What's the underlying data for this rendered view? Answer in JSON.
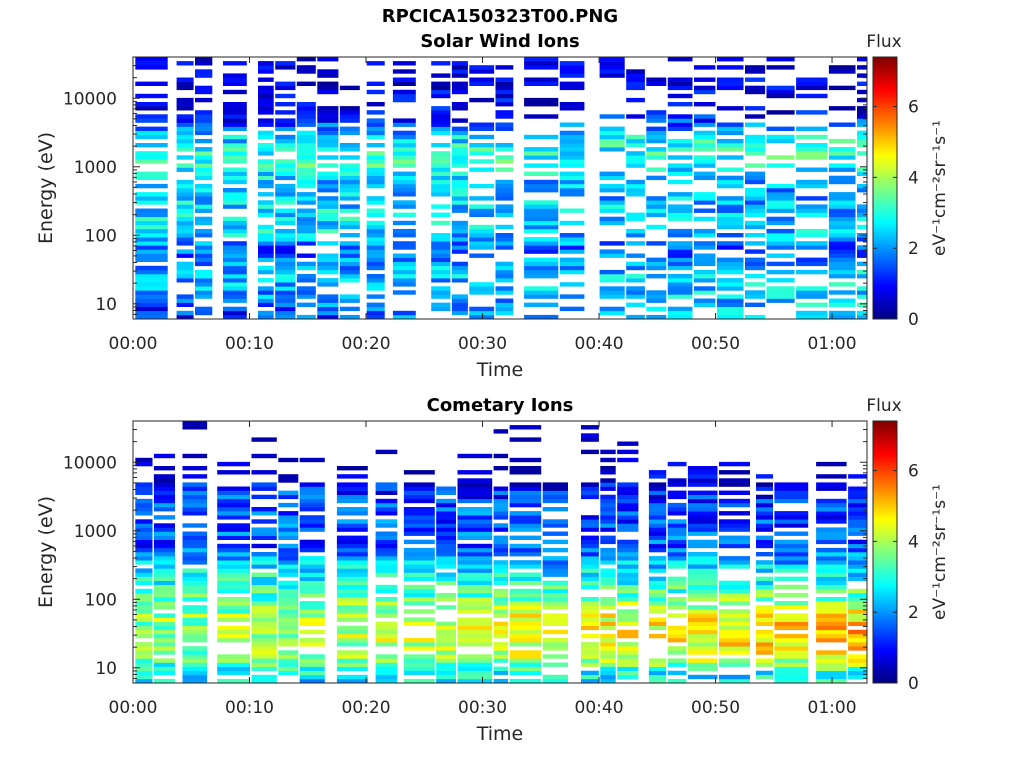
{
  "figure": {
    "title": "RPCICA150323T00.PNG"
  },
  "chart_data": [
    {
      "type": "heatmap",
      "title": "Solar Wind Ions",
      "xlabel": "Time",
      "ylabel": "Energy (eV)",
      "x_ticks": [
        "00:00",
        "00:10",
        "00:20",
        "00:30",
        "00:40",
        "00:50",
        "01:00"
      ],
      "x_range_minutes": [
        0,
        63
      ],
      "y_scale": "log",
      "y_ticks": [
        10,
        100,
        1000,
        10000
      ],
      "y_tick_labels": [
        "10",
        "100",
        "1000",
        "10000"
      ],
      "y_range": [
        6,
        40000
      ],
      "colorbar": {
        "label": "Flux",
        "unit_label": "eV⁻¹cm⁻²sr⁻¹s⁻¹",
        "ticks": [
          0,
          2,
          4,
          6
        ],
        "range": [
          0,
          7.4
        ],
        "colormap": [
          "#00007f",
          "#0000ff",
          "#007fff",
          "#00ffff",
          "#7fff7f",
          "#ffff00",
          "#ff7f00",
          "#ff0000",
          "#7f0000"
        ]
      },
      "flux_profile": {
        "energy_eV": [
          8,
          15,
          30,
          60,
          120,
          250,
          600,
          1200,
          2500,
          6000,
          15000,
          30000
        ],
        "early_flux": [
          1.2,
          2.0,
          2.3,
          1.5,
          2.8,
          2.6,
          2.5,
          3.2,
          2.4,
          0.6,
          0.5,
          0.4
        ],
        "late_flux": [
          2.5,
          2.6,
          2.4,
          1.6,
          2.3,
          2.2,
          2.0,
          3.1,
          2.9,
          1.0,
          0.6,
          0.5
        ]
      }
    },
    {
      "type": "heatmap",
      "title": "Cometary Ions",
      "xlabel": "Time",
      "ylabel": "Energy (eV)",
      "x_ticks": [
        "00:00",
        "00:10",
        "00:20",
        "00:30",
        "00:40",
        "00:50",
        "01:00"
      ],
      "x_range_minutes": [
        0,
        63
      ],
      "y_scale": "log",
      "y_ticks": [
        10,
        100,
        1000,
        10000
      ],
      "y_tick_labels": [
        "10",
        "100",
        "1000",
        "10000"
      ],
      "y_range": [
        6,
        40000
      ],
      "colorbar": {
        "label": "Flux",
        "unit_label": "eV⁻¹cm⁻²sr⁻¹s⁻¹",
        "ticks": [
          0,
          2,
          4,
          6
        ],
        "range": [
          0,
          7.4
        ],
        "colormap": [
          "#00007f",
          "#0000ff",
          "#007fff",
          "#00ffff",
          "#7fff7f",
          "#ffff00",
          "#ff7f00",
          "#ff0000",
          "#7f0000"
        ]
      },
      "flux_profile": {
        "energy_eV": [
          8,
          15,
          30,
          60,
          120,
          250,
          600,
          1200,
          2500,
          6000,
          15000,
          30000
        ],
        "early_flux": [
          2.5,
          3.6,
          3.7,
          3.8,
          3.2,
          2.8,
          1.4,
          1.6,
          1.8,
          0.8,
          0.0,
          0.0
        ],
        "late_flux": [
          2.8,
          4.6,
          5.2,
          4.8,
          3.4,
          2.6,
          1.6,
          1.4,
          1.2,
          0.6,
          0.0,
          0.0
        ]
      }
    }
  ]
}
